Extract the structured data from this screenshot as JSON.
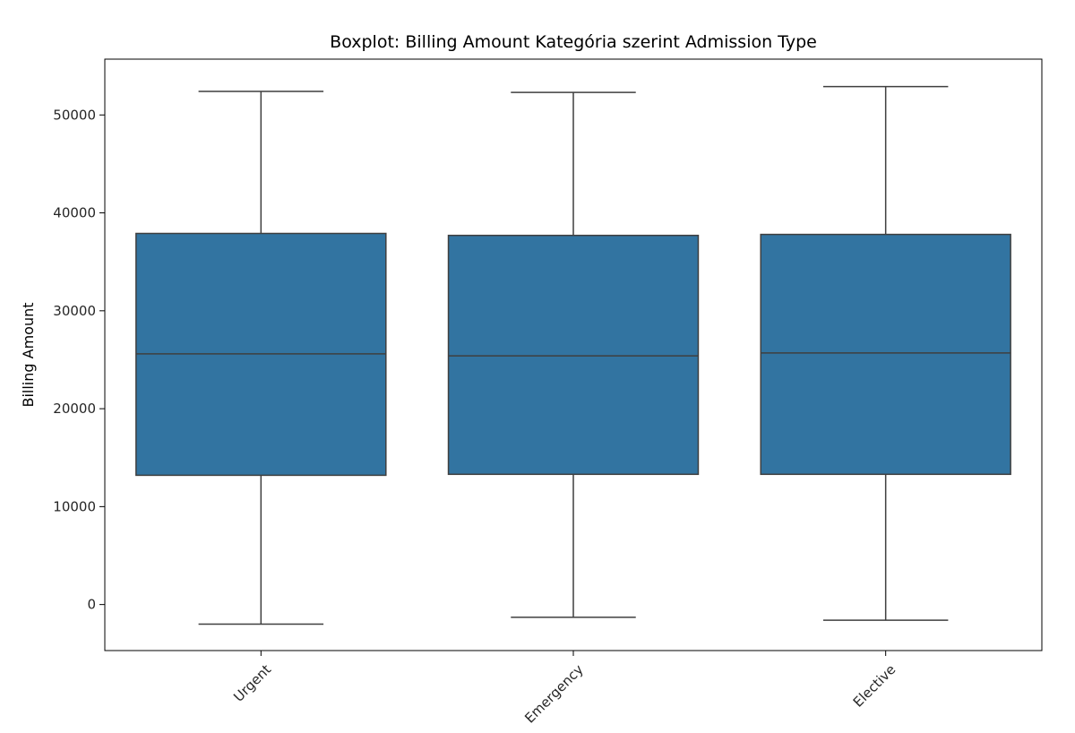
{
  "chart_data": {
    "type": "box",
    "title": "Boxplot: Billing Amount Kategória szerint Admission Type",
    "xlabel": "",
    "ylabel": "Billing Amount",
    "categories": [
      "Urgent",
      "Emergency",
      "Elective"
    ],
    "boxes": [
      {
        "category": "Urgent",
        "whisker_low": -2000,
        "q1": 13200,
        "median": 25600,
        "q3": 37900,
        "whisker_high": 52400
      },
      {
        "category": "Emergency",
        "whisker_low": -1300,
        "q1": 13300,
        "median": 25400,
        "q3": 37700,
        "whisker_high": 52300
      },
      {
        "category": "Elective",
        "whisker_low": -1600,
        "q1": 13300,
        "median": 25700,
        "q3": 37800,
        "whisker_high": 52900
      }
    ],
    "ylim": [
      -4700,
      55700
    ],
    "yticks": [
      0,
      10000,
      20000,
      30000,
      40000,
      50000
    ],
    "grid": false,
    "box_color": "#3274a1",
    "line_color": "#3f3f3f",
    "x_tick_rotation": 45
  }
}
